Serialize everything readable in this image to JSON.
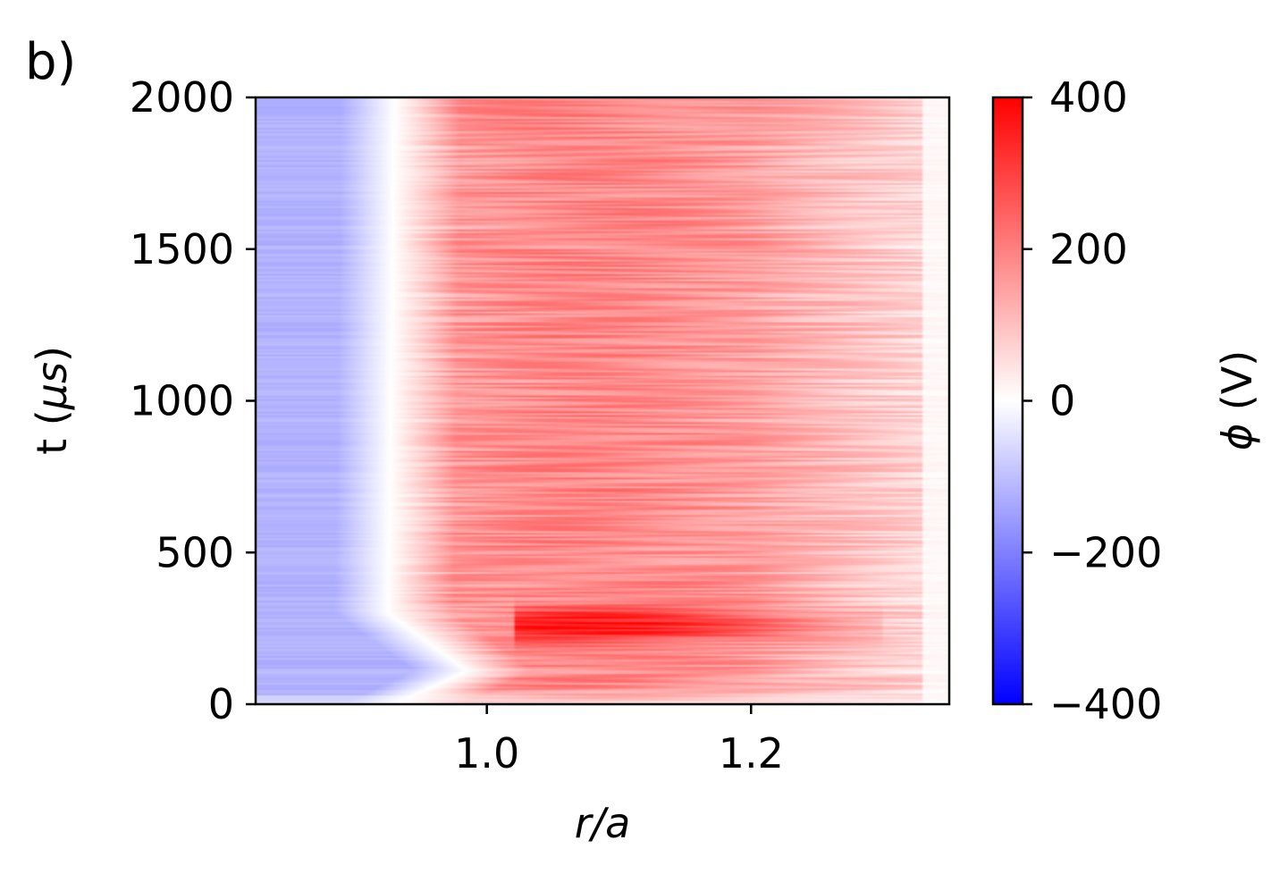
{
  "chart_data": {
    "type": "heatmap",
    "panel_label": "b)",
    "xlabel": "r/a",
    "ylabel_prefix": "t (",
    "ylabel_mu": "μ",
    "ylabel_unit": "s",
    "ylabel_suffix": ")",
    "xlim": [
      0.825,
      1.35
    ],
    "ylim": [
      0,
      2000
    ],
    "xticks": [
      1.0,
      1.2
    ],
    "xtick_labels": [
      "1.0",
      "1.2"
    ],
    "yticks": [
      0,
      500,
      1000,
      1500,
      2000
    ],
    "ytick_labels": [
      "0",
      "500",
      "1000",
      "1500",
      "2000"
    ],
    "colorbar": {
      "label_symbol": "ϕ",
      "label_unit": " (V)",
      "range": [
        -400,
        400
      ],
      "ticks": [
        -400,
        -200,
        0,
        200,
        400
      ],
      "tick_labels": [
        "−400",
        "−200",
        "0",
        "200",
        "400"
      ],
      "colormap": "bwr",
      "low_color": "#0000ff",
      "mid_color": "#ffffff",
      "high_color": "#ff0000"
    },
    "structure": {
      "zero_crossing_r": [
        {
          "t": 0,
          "r": 0.93
        },
        {
          "t": 110,
          "r": 0.985
        },
        {
          "t": 300,
          "r": 0.925
        },
        {
          "t": 2000,
          "r": 0.93
        }
      ],
      "inner_region_potential": -120,
      "outer_region_potential": 130,
      "peak_potential": 380,
      "peak_band_t": [
        200,
        320
      ],
      "peak_band_r": [
        1.02,
        1.3
      ],
      "grid": false
    }
  }
}
